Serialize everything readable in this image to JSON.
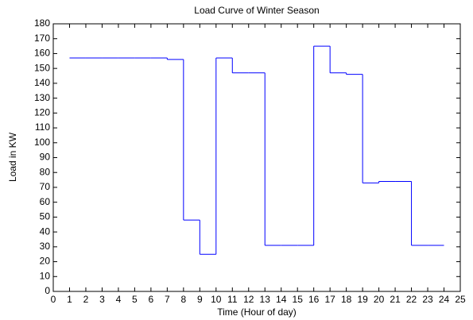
{
  "chart_data": {
    "type": "line",
    "step": "post",
    "title": "Load Curve of Winter Season",
    "xlabel": "Time (Hour of day)",
    "ylabel": "Load in KW",
    "x": [
      1,
      2,
      3,
      4,
      5,
      6,
      7,
      8,
      9,
      10,
      11,
      12,
      13,
      14,
      15,
      16,
      17,
      18,
      19,
      20,
      21,
      22,
      23,
      24
    ],
    "series": [
      {
        "name": "Load",
        "color": "#0000ff",
        "values": [
          157,
          157,
          157,
          157,
          157,
          157,
          156,
          48,
          25,
          157,
          147,
          147,
          31,
          31,
          31,
          165,
          147,
          146,
          73,
          74,
          74,
          31,
          31,
          31
        ]
      }
    ],
    "xlim": [
      0,
      25
    ],
    "xticks": [
      0,
      1,
      2,
      3,
      4,
      5,
      6,
      7,
      8,
      9,
      10,
      11,
      12,
      13,
      14,
      15,
      16,
      17,
      18,
      19,
      20,
      21,
      22,
      23,
      24,
      25
    ],
    "ylim": [
      0,
      180
    ],
    "yticks": [
      0,
      10,
      20,
      30,
      40,
      50,
      60,
      70,
      80,
      90,
      100,
      110,
      120,
      130,
      140,
      150,
      160,
      170,
      180
    ],
    "grid": false
  }
}
